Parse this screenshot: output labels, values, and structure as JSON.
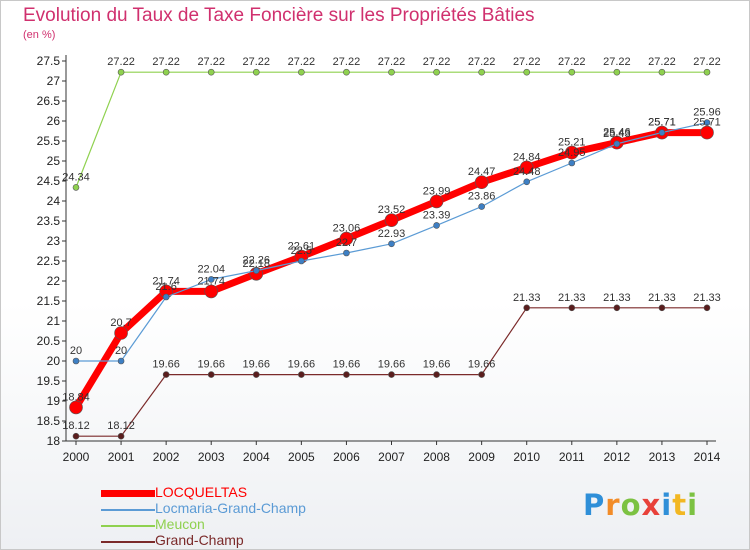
{
  "chart_data": {
    "type": "line",
    "title": "Evolution du Taux de Taxe Foncière sur les Propriétés Bâties",
    "ylabel": "(en %)",
    "xlabel": "",
    "ylim": [
      18,
      27.5
    ],
    "yticks": [
      "18",
      "18.5",
      "19",
      "19.5",
      "20",
      "20.5",
      "21",
      "21.5",
      "22",
      "22.5",
      "23",
      "23.5",
      "24",
      "24.5",
      "25",
      "25.5",
      "26",
      "26.5",
      "27",
      "27.5"
    ],
    "categories": [
      "2000",
      "2001",
      "2002",
      "2003",
      "2004",
      "2005",
      "2006",
      "2007",
      "2008",
      "2009",
      "2010",
      "2011",
      "2012",
      "2013",
      "2014"
    ],
    "series": [
      {
        "name": "LOCQUELTAS",
        "color": "#ff0000",
        "values": [
          18.84,
          20.7,
          21.74,
          21.74,
          22.18,
          22.61,
          23.06,
          23.52,
          23.99,
          24.47,
          24.84,
          25.21,
          25.46,
          25.71,
          25.71
        ],
        "labels": [
          "18.84",
          "20.7",
          "21.74",
          "21.74",
          "22.18",
          "22.61",
          "23.06",
          "23.52",
          "23.99",
          "24.47",
          "24.84",
          "25.21",
          "25.46",
          "25.71",
          "25.71"
        ]
      },
      {
        "name": "Locmaria-Grand-Champ",
        "color": "#5b9bd5",
        "values": [
          20,
          20,
          21.6,
          22.04,
          22.26,
          22.5,
          22.7,
          22.93,
          23.39,
          23.86,
          24.48,
          24.95,
          25.43,
          25.71,
          25.96
        ],
        "labels": [
          "20",
          "20",
          "21.6",
          "22.04",
          "22.26",
          "22.5",
          "22.7",
          "22.93",
          "23.39",
          "23.86",
          "24.48",
          "24.95",
          "25.43",
          "25.71",
          "25.96"
        ]
      },
      {
        "name": "Meucon",
        "color": "#8fd14f",
        "values": [
          24.34,
          27.22,
          27.22,
          27.22,
          27.22,
          27.22,
          27.22,
          27.22,
          27.22,
          27.22,
          27.22,
          27.22,
          27.22,
          27.22,
          27.22
        ],
        "labels": [
          "24.34",
          "27.22",
          "27.22",
          "27.22",
          "27.22",
          "27.22",
          "27.22",
          "27.22",
          "27.22",
          "27.22",
          "27.22",
          "27.22",
          "27.22",
          "27.22",
          "27.22"
        ]
      },
      {
        "name": "Grand-Champ",
        "color": "#7b2a2a",
        "values": [
          18.12,
          18.12,
          19.66,
          19.66,
          19.66,
          19.66,
          19.66,
          19.66,
          19.66,
          19.66,
          21.33,
          21.33,
          21.33,
          21.33,
          21.33
        ],
        "labels": [
          "18.12",
          "18.12",
          "19.66",
          "19.66",
          "19.66",
          "19.66",
          "19.66",
          "19.66",
          "19.66",
          "19.66",
          "21.33",
          "21.33",
          "21.33",
          "21.33",
          "21.33"
        ]
      }
    ],
    "legend_position": "bottom-left",
    "grid": false
  },
  "legend": {
    "items": [
      {
        "label": "LOCQUELTAS",
        "color": "#ff0000"
      },
      {
        "label": "Locmaria-Grand-Champ",
        "color": "#5b9bd5"
      },
      {
        "label": "Meucon",
        "color": "#8fd14f"
      },
      {
        "label": "Grand-Champ",
        "color": "#7b2a2a"
      }
    ]
  },
  "logo": {
    "letters": [
      "P",
      "r",
      "o",
      "x",
      "i",
      "t",
      "i"
    ],
    "colors": [
      "#2f8fd8",
      "#f28c28",
      "#7cc242",
      "#e8413a",
      "#2f8fd8",
      "#f2b722",
      "#7cc242"
    ]
  }
}
